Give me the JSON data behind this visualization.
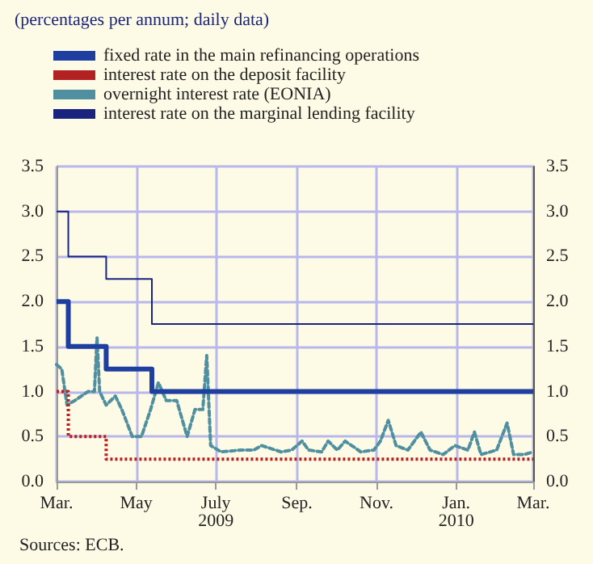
{
  "chart_data": {
    "type": "step",
    "title": "(percentages per annum; daily data)",
    "annotations": [
      "Sources: ECB."
    ],
    "x": [
      "2009-03-01",
      "2009-03-10",
      "2009-04-08",
      "2009-05-13",
      "2010-03-01"
    ],
    "series": [
      {
        "name": "fixed rate in the main refinancing operations",
        "color": "#1f3fa0",
        "values": [
          2.0,
          1.5,
          1.25,
          1.0,
          1.0
        ],
        "line_style": "solid"
      },
      {
        "name": "interest rate on the deposit facility",
        "color": "#b22222",
        "values": [
          1.0,
          0.5,
          0.25,
          0.25,
          0.25
        ],
        "line_style": "dotted"
      },
      {
        "name": "overnight interest rate (EONIA)",
        "color": "#4f8f9f",
        "type": "line",
        "line_style": "dashed",
        "x": [
          "2009-03-01",
          "2009-03-05",
          "2009-03-09",
          "2009-03-15",
          "2009-03-25",
          "2009-03-30",
          "2009-04-01",
          "2009-04-03",
          "2009-04-08",
          "2009-04-15",
          "2009-04-20",
          "2009-04-28",
          "2009-05-05",
          "2009-05-12",
          "2009-05-18",
          "2009-05-24",
          "2009-06-01",
          "2009-06-09",
          "2009-06-15",
          "2009-06-21",
          "2009-06-24",
          "2009-06-27",
          "2009-07-05",
          "2009-07-20",
          "2009-07-30",
          "2009-08-05",
          "2009-08-20",
          "2009-08-28",
          "2009-09-05",
          "2009-09-10",
          "2009-09-20",
          "2009-09-25",
          "2009-10-02",
          "2009-10-08",
          "2009-10-20",
          "2009-10-30",
          "2009-11-04",
          "2009-11-10",
          "2009-11-16",
          "2009-11-25",
          "2009-12-05",
          "2009-12-12",
          "2009-12-22",
          "2009-12-31",
          "2010-01-10",
          "2010-01-15",
          "2010-01-20",
          "2010-02-01",
          "2010-02-09",
          "2010-02-14",
          "2010-02-22",
          "2010-03-01"
        ],
        "values": [
          1.3,
          1.25,
          0.85,
          0.9,
          1.0,
          1.0,
          1.6,
          1.0,
          0.85,
          0.95,
          0.8,
          0.5,
          0.5,
          0.8,
          1.1,
          0.9,
          0.9,
          0.5,
          0.8,
          0.8,
          1.4,
          0.4,
          0.33,
          0.35,
          0.35,
          0.4,
          0.33,
          0.35,
          0.45,
          0.35,
          0.33,
          0.45,
          0.35,
          0.45,
          0.33,
          0.35,
          0.45,
          0.68,
          0.4,
          0.35,
          0.55,
          0.35,
          0.3,
          0.4,
          0.35,
          0.55,
          0.3,
          0.35,
          0.65,
          0.3,
          0.3,
          0.33
        ]
      },
      {
        "name": "interest rate on the marginal lending facility",
        "color": "#1a237e",
        "values": [
          3.0,
          2.5,
          2.25,
          1.75,
          1.75
        ],
        "line_style": "solid"
      }
    ],
    "xlim": [
      "2009-03-01",
      "2010-03-01"
    ],
    "xticks": [
      {
        "value": "2009-03-01",
        "label": "Mar."
      },
      {
        "value": "2009-05-01",
        "label": "May"
      },
      {
        "value": "2009-07-01",
        "label": "July\n2009"
      },
      {
        "value": "2009-09-01",
        "label": "Sep."
      },
      {
        "value": "2009-11-01",
        "label": "Nov."
      },
      {
        "value": "2010-01-01",
        "label": "Jan.\n2010"
      },
      {
        "value": "2010-03-01",
        "label": "Mar."
      }
    ],
    "ylim": [
      0,
      3.5
    ],
    "yticks": [
      {
        "value": 0,
        "label": "0.0"
      },
      0.5,
      {
        "value": 1,
        "label": "1.0"
      },
      1.5,
      {
        "value": 2,
        "label": "2.0"
      },
      2.5,
      {
        "value": 3,
        "label": "3.0"
      },
      3.5
    ],
    "y2lim": [
      0,
      3.5
    ],
    "y2ticks": [
      {
        "value": 0,
        "label": "0.0"
      },
      0.5,
      {
        "value": 1,
        "label": "1.0"
      },
      1.5,
      {
        "value": 2,
        "label": "2.0"
      },
      2.5,
      {
        "value": 3,
        "label": "3.0"
      },
      3.5
    ],
    "grid": true,
    "legend": "top left",
    "marker": "none"
  }
}
